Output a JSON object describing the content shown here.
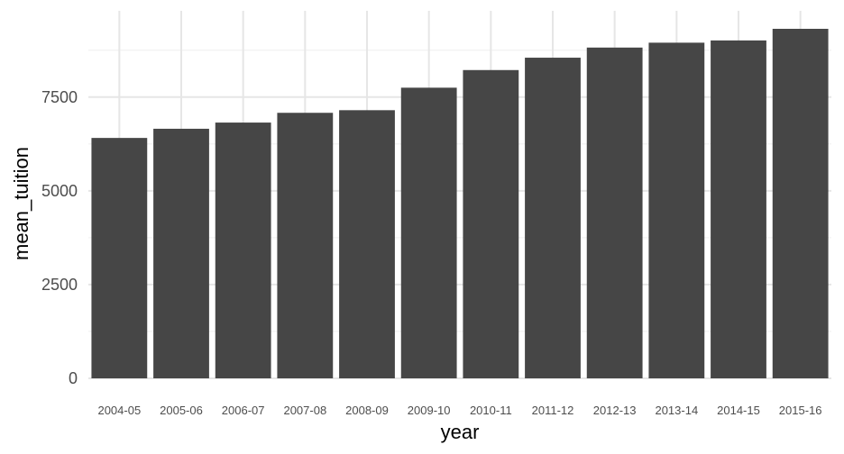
{
  "colors": {
    "bar": "#464646",
    "grid_major": "#e6e6e6",
    "grid_minor": "#f0f0f0",
    "background": "#ffffff"
  },
  "chart_data": {
    "type": "bar",
    "title": "",
    "xlabel": "year",
    "ylabel": "mean_tuition",
    "categories": [
      "2004-05",
      "2005-06",
      "2006-07",
      "2007-08",
      "2008-09",
      "2009-10",
      "2010-11",
      "2011-12",
      "2012-13",
      "2013-14",
      "2014-15",
      "2015-16"
    ],
    "values": [
      6410,
      6655,
      6820,
      7080,
      7150,
      7750,
      8220,
      8550,
      8820,
      8950,
      9010,
      9320
    ],
    "ylim": [
      0,
      9800
    ],
    "yticks": [
      0,
      2500,
      5000,
      7500
    ],
    "ytick_labels": [
      "0",
      "2500",
      "5000",
      "7500"
    ],
    "grid": true,
    "legend": "none"
  }
}
